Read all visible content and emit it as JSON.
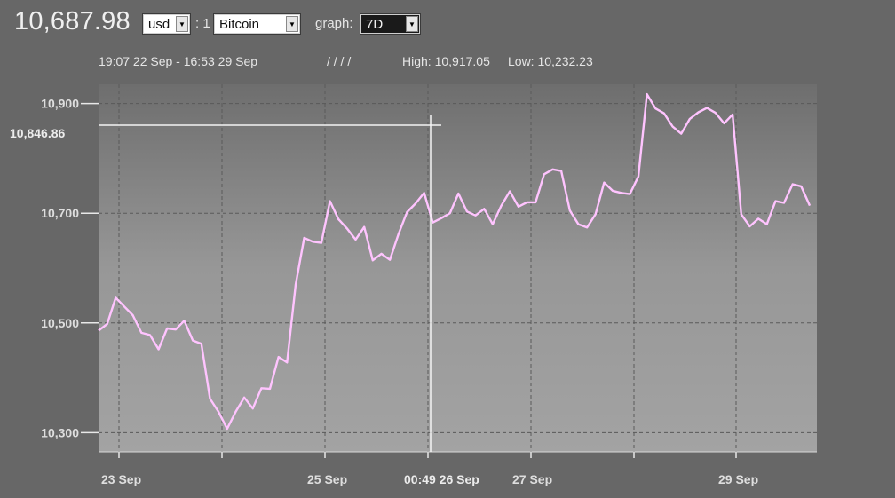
{
  "header": {
    "price": "10,687.98",
    "currency_select": "usd",
    "separator": ": 1",
    "coin_select": "Bitcoin",
    "graph_label": "graph:",
    "range_select": "7D"
  },
  "info": {
    "date_range": "19:07 22 Sep - 16:53 29 Sep",
    "slashes": "/ / / /",
    "high": "High: 10,917.05",
    "low": "Low: 10,232.23"
  },
  "crosshair": {
    "value_label": "10,846.86",
    "time_label": "00:49 26 Sep"
  },
  "chart_data": {
    "type": "line",
    "ylim": [
      10265,
      10935
    ],
    "yticks": [
      "10,900",
      "10,700",
      "10,500",
      "10,300"
    ],
    "ytick_values": [
      10900,
      10700,
      10500,
      10300
    ],
    "xticks": [
      "23 Sep",
      "25 Sep",
      "27 Sep",
      "29 Sep"
    ],
    "series_color": "#ffc4ff",
    "series": [
      {
        "values": [
          10486,
          10498,
          10546,
          10530,
          10514,
          10482,
          10478,
          10452,
          10490,
          10488,
          10504,
          10468,
          10462,
          10362,
          10338,
          10307,
          10338,
          10364,
          10344,
          10381,
          10380,
          10438,
          10428,
          10570,
          10655,
          10648,
          10646,
          10722,
          10689,
          10672,
          10652,
          10675,
          10614,
          10626,
          10615,
          10662,
          10702,
          10718,
          10737,
          10683,
          10691,
          10700,
          10736,
          10703,
          10696,
          10708,
          10680,
          10714,
          10740,
          10712,
          10720,
          10720,
          10771,
          10780,
          10777,
          10705,
          10680,
          10674,
          10698,
          10756,
          10741,
          10737,
          10735,
          10767,
          10917,
          10891,
          10882,
          10858,
          10845,
          10872,
          10884,
          10892,
          10883,
          10864,
          10880,
          10698,
          10676,
          10690,
          10680,
          10722,
          10719,
          10753,
          10749,
          10714
        ]
      }
    ]
  }
}
